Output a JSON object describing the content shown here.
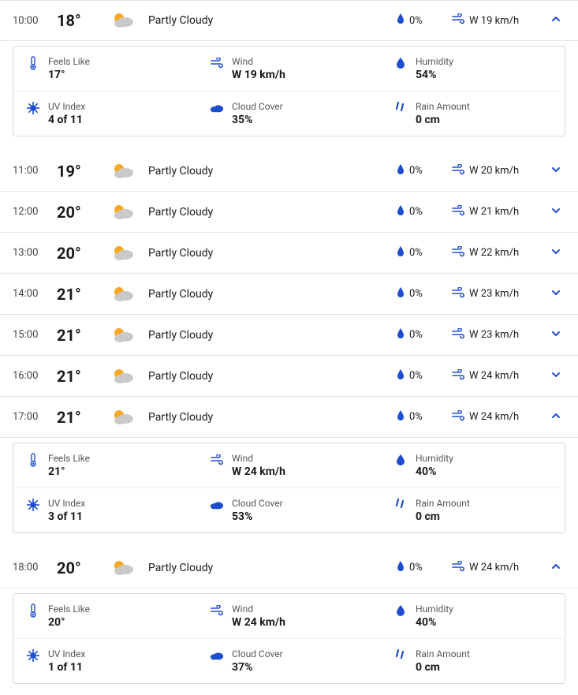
{
  "colors": {
    "accent": "#1f4dcf",
    "text": "#1a1a1a",
    "muted": "#555555",
    "border": "#e5e5e5",
    "sun": "#f9a825",
    "cloud": "#c9c9c9"
  },
  "labels": {
    "feels_like": "Feels Like",
    "wind": "Wind",
    "humidity": "Humidity",
    "uv_index": "UV Index",
    "cloud_cover": "Cloud Cover",
    "rain_amount": "Rain Amount"
  },
  "hours": [
    {
      "time": "10:00",
      "temp": "18°",
      "condition": "Partly Cloudy",
      "precip": "0%",
      "wind_short": "W 19 km/h",
      "expanded": true,
      "details": {
        "feels_like": "17°",
        "wind": "W 19 km/h",
        "humidity": "54%",
        "uv_index": "4 of 11",
        "cloud_cover": "35%",
        "rain_amount": "0 cm"
      }
    },
    {
      "time": "11:00",
      "temp": "19°",
      "condition": "Partly Cloudy",
      "precip": "0%",
      "wind_short": "W 20 km/h",
      "expanded": false
    },
    {
      "time": "12:00",
      "temp": "20°",
      "condition": "Partly Cloudy",
      "precip": "0%",
      "wind_short": "W 21 km/h",
      "expanded": false
    },
    {
      "time": "13:00",
      "temp": "20°",
      "condition": "Partly Cloudy",
      "precip": "0%",
      "wind_short": "W 22 km/h",
      "expanded": false
    },
    {
      "time": "14:00",
      "temp": "21°",
      "condition": "Partly Cloudy",
      "precip": "0%",
      "wind_short": "W 23 km/h",
      "expanded": false
    },
    {
      "time": "15:00",
      "temp": "21°",
      "condition": "Partly Cloudy",
      "precip": "0%",
      "wind_short": "W 23 km/h",
      "expanded": false
    },
    {
      "time": "16:00",
      "temp": "21°",
      "condition": "Partly Cloudy",
      "precip": "0%",
      "wind_short": "W 24 km/h",
      "expanded": false
    },
    {
      "time": "17:00",
      "temp": "21°",
      "condition": "Partly Cloudy",
      "precip": "0%",
      "wind_short": "W 24 km/h",
      "expanded": true,
      "details": {
        "feels_like": "21°",
        "wind": "W 24 km/h",
        "humidity": "40%",
        "uv_index": "3 of 11",
        "cloud_cover": "53%",
        "rain_amount": "0 cm"
      }
    },
    {
      "time": "18:00",
      "temp": "20°",
      "condition": "Partly Cloudy",
      "precip": "0%",
      "wind_short": "W 24 km/h",
      "expanded": true,
      "details": {
        "feels_like": "20°",
        "wind": "W 24 km/h",
        "humidity": "40%",
        "uv_index": "1 of 11",
        "cloud_cover": "37%",
        "rain_amount": "0 cm"
      }
    }
  ]
}
